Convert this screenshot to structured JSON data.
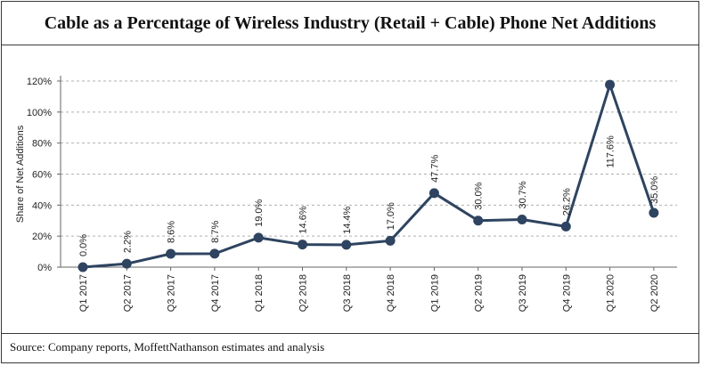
{
  "title": "Cable as a Percentage of Wireless Industry (Retail + Cable) Phone Net Additions",
  "source": "Source: Company reports, MoffettNathanson estimates and analysis",
  "colors": {
    "line": "#2e4460",
    "grid": "#b0b0b0",
    "text": "#222222"
  },
  "chart_data": {
    "type": "line",
    "ylabel": "Share of Net Additions",
    "ylim": [
      0,
      120
    ],
    "yticks": [
      0,
      20,
      40,
      60,
      80,
      100,
      120
    ],
    "ytick_labels": [
      "0%",
      "20%",
      "40%",
      "60%",
      "80%",
      "100%",
      "120%"
    ],
    "grid": true,
    "categories": [
      "Q1 2017",
      "Q2 2017",
      "Q3 2017",
      "Q4 2017",
      "Q1 2018",
      "Q2 2018",
      "Q3 2018",
      "Q4 2018",
      "Q1 2019",
      "Q2 2019",
      "Q3 2019",
      "Q4 2019",
      "Q1 2020",
      "Q2 2020"
    ],
    "values": [
      0.0,
      2.2,
      8.6,
      8.7,
      19.0,
      14.6,
      14.4,
      17.0,
      47.7,
      30.0,
      30.7,
      26.2,
      117.6,
      35.0
    ],
    "data_labels": [
      "0.0%",
      "2.2%",
      "8.6%",
      "8.7%",
      "19.0%",
      "14.6%",
      "14.4%",
      "17.0%",
      "47.7%",
      "30.0%",
      "30.7%",
      "26.2%",
      "117.6%",
      "35.0%"
    ]
  }
}
